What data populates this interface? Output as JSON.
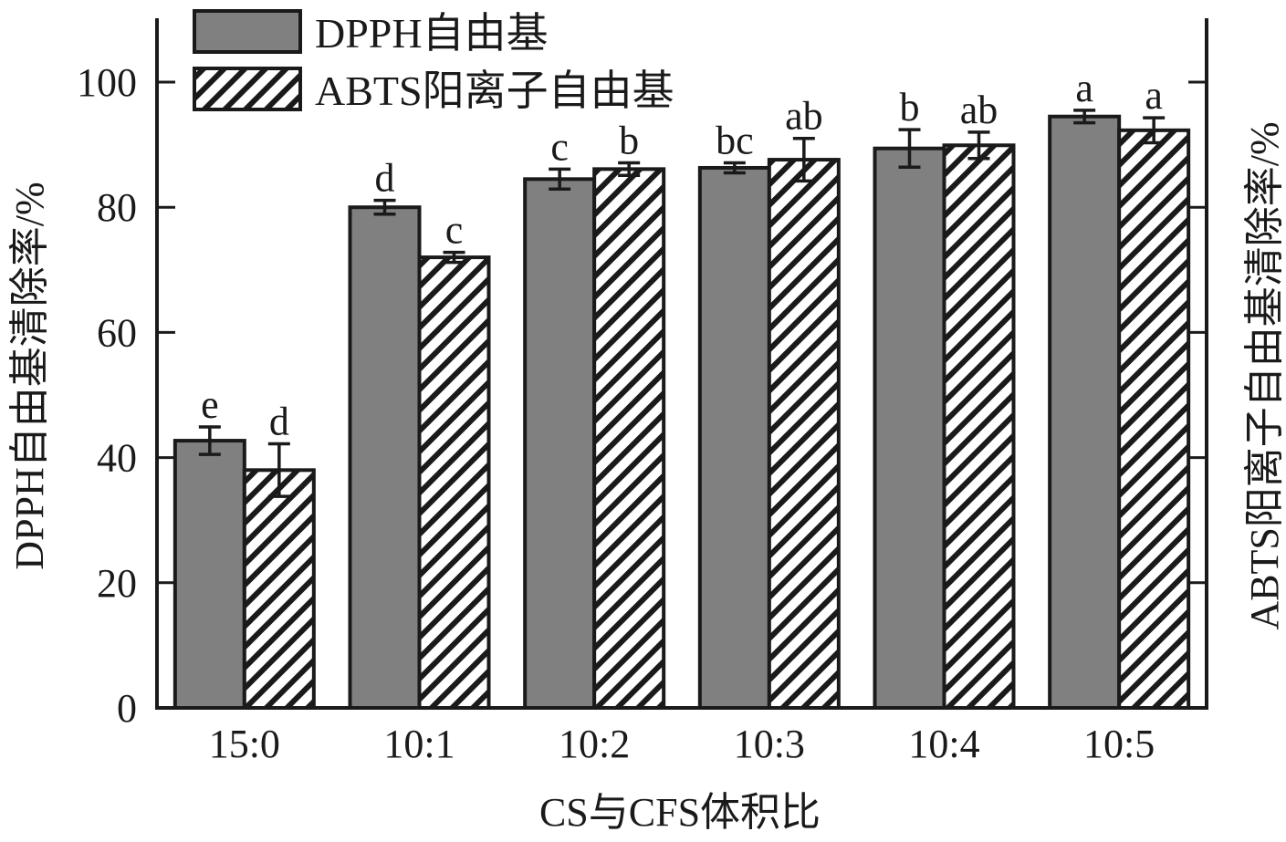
{
  "chart_data": {
    "type": "bar",
    "title": "",
    "xlabel": "CS与CFS体积比",
    "ylabel": "DPPH自由基清除率/%",
    "ylabel_right": "ABTS阳离子自由基清除率/%",
    "ylim": [
      0,
      110
    ],
    "yticks": [
      0,
      20,
      40,
      60,
      80,
      100
    ],
    "yticks_right": [
      0,
      20,
      40,
      60,
      80,
      100
    ],
    "grid": false,
    "legend_position": "top-left",
    "categories": [
      "15:0",
      "10:1",
      "10:2",
      "10:3",
      "10:4",
      "10:5"
    ],
    "series": [
      {
        "name": "DPPH自由基",
        "pattern": "solid",
        "color": "#808080",
        "values": [
          42.7,
          80.0,
          84.5,
          86.3,
          89.4,
          94.5
        ],
        "errors": [
          2.2,
          1.1,
          1.6,
          0.8,
          3.0,
          1.0
        ],
        "significance": [
          "e",
          "d",
          "c",
          "bc",
          "b",
          "a"
        ]
      },
      {
        "name": "ABTS阳离子自由基",
        "pattern": "hatched",
        "color": "#ffffff",
        "values": [
          38.0,
          72.0,
          86.1,
          87.6,
          89.9,
          92.3
        ],
        "errors": [
          4.2,
          0.8,
          1.0,
          3.4,
          2.1,
          2.0
        ],
        "significance": [
          "d",
          "c",
          "b",
          "ab",
          "ab",
          "a"
        ]
      }
    ]
  }
}
